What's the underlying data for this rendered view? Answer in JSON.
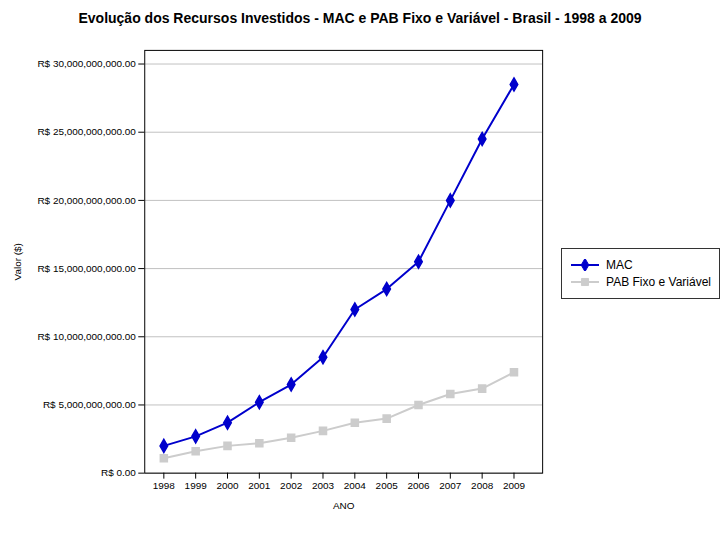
{
  "chart_data": {
    "type": "line",
    "title": "Evolução dos Recursos Investidos - MAC e PAB Fixo e Variável - Brasil - 1998 a 2009",
    "xlabel": "ANO",
    "ylabel": "Valor ($)",
    "x": [
      1998,
      1999,
      2000,
      2001,
      2002,
      2003,
      2004,
      2005,
      2006,
      2007,
      2008,
      2009
    ],
    "series": [
      {
        "name": "MAC",
        "color": "#0000CC",
        "marker": "diamond",
        "values": [
          2000000000,
          2700000000,
          3700000000,
          5200000000,
          6500000000,
          8500000000,
          12000000000,
          13500000000,
          15500000000,
          20000000000,
          24500000000,
          28500000000
        ]
      },
      {
        "name": "PAB Fixo e Variável",
        "color": "#CCCCCC",
        "marker": "square",
        "values": [
          1100000000,
          1600000000,
          2000000000,
          2200000000,
          2600000000,
          3100000000,
          3700000000,
          4000000000,
          5000000000,
          5800000000,
          6200000000,
          7400000000
        ]
      }
    ],
    "xlim": [
      1997.4,
      2009.9
    ],
    "xticks": [
      1998,
      1999,
      2000,
      2001,
      2002,
      2003,
      2004,
      2005,
      2006,
      2007,
      2008,
      2009
    ],
    "ylim": [
      0,
      31000000000
    ],
    "yticks": [
      {
        "value": 0,
        "label": "R$ 0.00"
      },
      {
        "value": 5000000000,
        "label": "R$ 5,000,000,000.00"
      },
      {
        "value": 10000000000,
        "label": "R$ 10,000,000,000.00"
      },
      {
        "value": 15000000000,
        "label": "R$ 15,000,000,000.00"
      },
      {
        "value": 20000000000,
        "label": "R$ 20,000,000,000.00"
      },
      {
        "value": 25000000000,
        "label": "R$ 25,000,000,000.00"
      },
      {
        "value": 30000000000,
        "label": "R$ 30,000,000,000.00"
      }
    ],
    "grid": true,
    "legend": "right"
  }
}
